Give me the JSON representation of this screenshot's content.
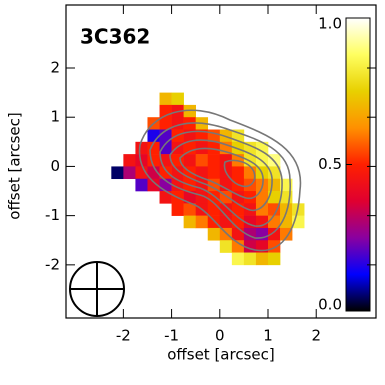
{
  "chart_data": {
    "type": "heatmap",
    "title": "3C362",
    "xlabel": "offset [arcsec]",
    "ylabel": "offset [arcsec]",
    "xlim": [
      -3.19,
      3.24
    ],
    "ylim": [
      -3.08,
      3.28
    ],
    "xticks": [
      -2,
      -1,
      0,
      1,
      2
    ],
    "yticks": [
      -2,
      -1,
      0,
      1,
      2
    ],
    "x": [
      -2.125,
      -1.875,
      -1.625,
      -1.375,
      -1.125,
      -0.875,
      -0.625,
      -0.375,
      -0.125,
      0.125,
      0.375,
      0.625,
      0.875,
      1.125,
      1.375,
      1.625
    ],
    "y": [
      1.375,
      1.125,
      0.875,
      0.625,
      0.375,
      0.125,
      -0.125,
      -0.375,
      -0.625,
      -0.875,
      -1.125,
      -1.375,
      -1.625,
      -1.875
    ],
    "z": [
      [
        null,
        null,
        null,
        null,
        0.7,
        0.75,
        null,
        null,
        null,
        null,
        null,
        null,
        null,
        null,
        null,
        null
      ],
      [
        null,
        null,
        null,
        null,
        0.5,
        0.45,
        0.7,
        null,
        null,
        null,
        null,
        null,
        null,
        null,
        null,
        null
      ],
      [
        null,
        null,
        null,
        0.55,
        0.5,
        0.45,
        0.5,
        0.7,
        null,
        null,
        null,
        null,
        null,
        null,
        null,
        null
      ],
      [
        null,
        null,
        null,
        0.15,
        0.2,
        0.5,
        0.45,
        0.5,
        0.55,
        0.7,
        0.8,
        null,
        null,
        null,
        null,
        null
      ],
      [
        null,
        null,
        0.45,
        0.5,
        0.2,
        0.45,
        0.5,
        0.45,
        0.5,
        0.6,
        0.75,
        0.8,
        0.85,
        null,
        null,
        null
      ],
      [
        null,
        0.45,
        0.4,
        0.5,
        0.45,
        0.5,
        0.45,
        0.55,
        0.5,
        0.45,
        0.6,
        0.8,
        0.85,
        0.9,
        null,
        null
      ],
      [
        0.05,
        0.3,
        0.45,
        0.35,
        0.5,
        0.45,
        0.5,
        0.45,
        0.5,
        0.45,
        0.5,
        0.6,
        0.75,
        0.8,
        null,
        null
      ],
      [
        null,
        null,
        0.2,
        0.4,
        0.25,
        0.45,
        0.5,
        0.45,
        0.55,
        0.45,
        0.5,
        0.55,
        0.6,
        0.7,
        0.85,
        null
      ],
      [
        null,
        null,
        null,
        null,
        0.45,
        0.5,
        0.4,
        0.45,
        0.5,
        0.55,
        0.45,
        0.5,
        0.6,
        0.75,
        0.8,
        null
      ],
      [
        null,
        null,
        null,
        null,
        null,
        0.5,
        0.55,
        0.45,
        0.5,
        0.45,
        0.5,
        0.45,
        0.6,
        0.55,
        0.7,
        0.8
      ],
      [
        null,
        null,
        null,
        null,
        null,
        null,
        0.7,
        0.6,
        0.5,
        0.45,
        0.5,
        0.4,
        0.45,
        0.6,
        0.7,
        0.85
      ],
      [
        null,
        null,
        null,
        null,
        null,
        null,
        null,
        null,
        0.7,
        0.6,
        0.45,
        0.3,
        0.25,
        0.45,
        0.6,
        null
      ],
      [
        null,
        null,
        null,
        null,
        null,
        null,
        null,
        null,
        null,
        0.8,
        0.6,
        0.35,
        0.4,
        0.55,
        null,
        null
      ],
      [
        null,
        null,
        null,
        null,
        null,
        null,
        null,
        null,
        null,
        null,
        0.85,
        0.8,
        0.7,
        0.75,
        null,
        null
      ]
    ],
    "colormap": [
      "#000000",
      "#0000ff",
      "#8a00a0",
      "#e00030",
      "#ff2000",
      "#ff9000",
      "#e8d000",
      "#ffff60",
      "#ffffff"
    ],
    "colorbar": {
      "lim": [
        0,
        1
      ],
      "ticks": [
        {
          "value": 0,
          "label": "0.0"
        },
        {
          "value": 0.5,
          "label": "0.5"
        },
        {
          "value": 1,
          "label": "1.0"
        }
      ]
    }
  }
}
